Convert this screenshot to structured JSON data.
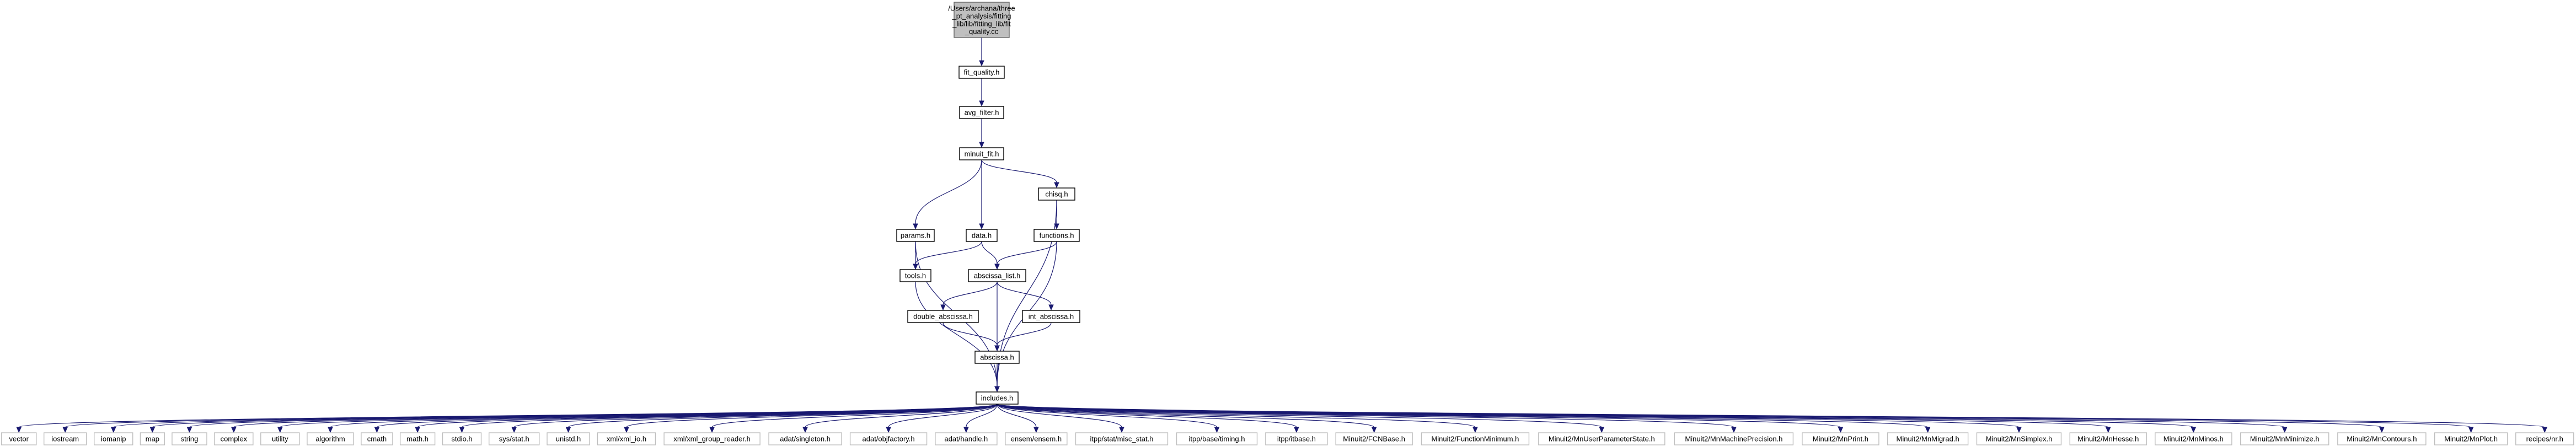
{
  "graph": {
    "root": {
      "label_lines": [
        "/Users/archana/three",
        "_pt_analysis/fitting",
        "_lib/lib/fitting_lib/fit",
        "_quality.cc"
      ]
    },
    "nodes": {
      "fit_quality": "fit_quality.h",
      "avg_filter": "avg_filter.h",
      "minuit_fit": "minuit_fit.h",
      "chisq": "chisq.h",
      "params": "params.h",
      "data": "data.h",
      "functions": "functions.h",
      "tools": "tools.h",
      "abscissa_list": "abscissa_list.h",
      "double_abscissa": "double_abscissa.h",
      "int_abscissa": "int_abscissa.h",
      "abscissa": "abscissa.h",
      "includes": "includes.h"
    },
    "leaves": [
      "vector",
      "iostream",
      "iomanip",
      "map",
      "string",
      "complex",
      "utility",
      "algorithm",
      "cmath",
      "math.h",
      "stdio.h",
      "sys/stat.h",
      "unistd.h",
      "xml/xml_io.h",
      "xml/xml_group_reader.h",
      "adat/singleton.h",
      "adat/objfactory.h",
      "adat/handle.h",
      "ensem/ensem.h",
      "itpp/stat/misc_stat.h",
      "itpp/base/timing.h",
      "itpp/itbase.h",
      "Minuit2/FCNBase.h",
      "Minuit2/FunctionMinimum.h",
      "Minuit2/MnUserParameterState.h",
      "Minuit2/MnMachinePrecision.h",
      "Minuit2/MnPrint.h",
      "Minuit2/MnMigrad.h",
      "Minuit2/MnSimplex.h",
      "Minuit2/MnHesse.h",
      "Minuit2/MnMinos.h",
      "Minuit2/MnMinimize.h",
      "Minuit2/MnContours.h",
      "Minuit2/MnPlot.h",
      "recipes/nr.h"
    ],
    "edges": [
      [
        "root",
        "fit_quality"
      ],
      [
        "fit_quality",
        "avg_filter"
      ],
      [
        "avg_filter",
        "minuit_fit"
      ],
      [
        "minuit_fit",
        "params"
      ],
      [
        "minuit_fit",
        "data"
      ],
      [
        "minuit_fit",
        "chisq"
      ],
      [
        "chisq",
        "functions"
      ],
      [
        "chisq",
        "includes"
      ],
      [
        "params",
        "tools"
      ],
      [
        "params",
        "includes"
      ],
      [
        "data",
        "tools"
      ],
      [
        "data",
        "abscissa_list"
      ],
      [
        "functions",
        "abscissa_list"
      ],
      [
        "functions",
        "includes"
      ],
      [
        "tools",
        "includes"
      ],
      [
        "abscissa_list",
        "double_abscissa"
      ],
      [
        "abscissa_list",
        "int_abscissa"
      ],
      [
        "abscissa_list",
        "abscissa"
      ],
      [
        "double_abscissa",
        "abscissa"
      ],
      [
        "int_abscissa",
        "abscissa"
      ],
      [
        "abscissa",
        "includes"
      ]
    ]
  }
}
